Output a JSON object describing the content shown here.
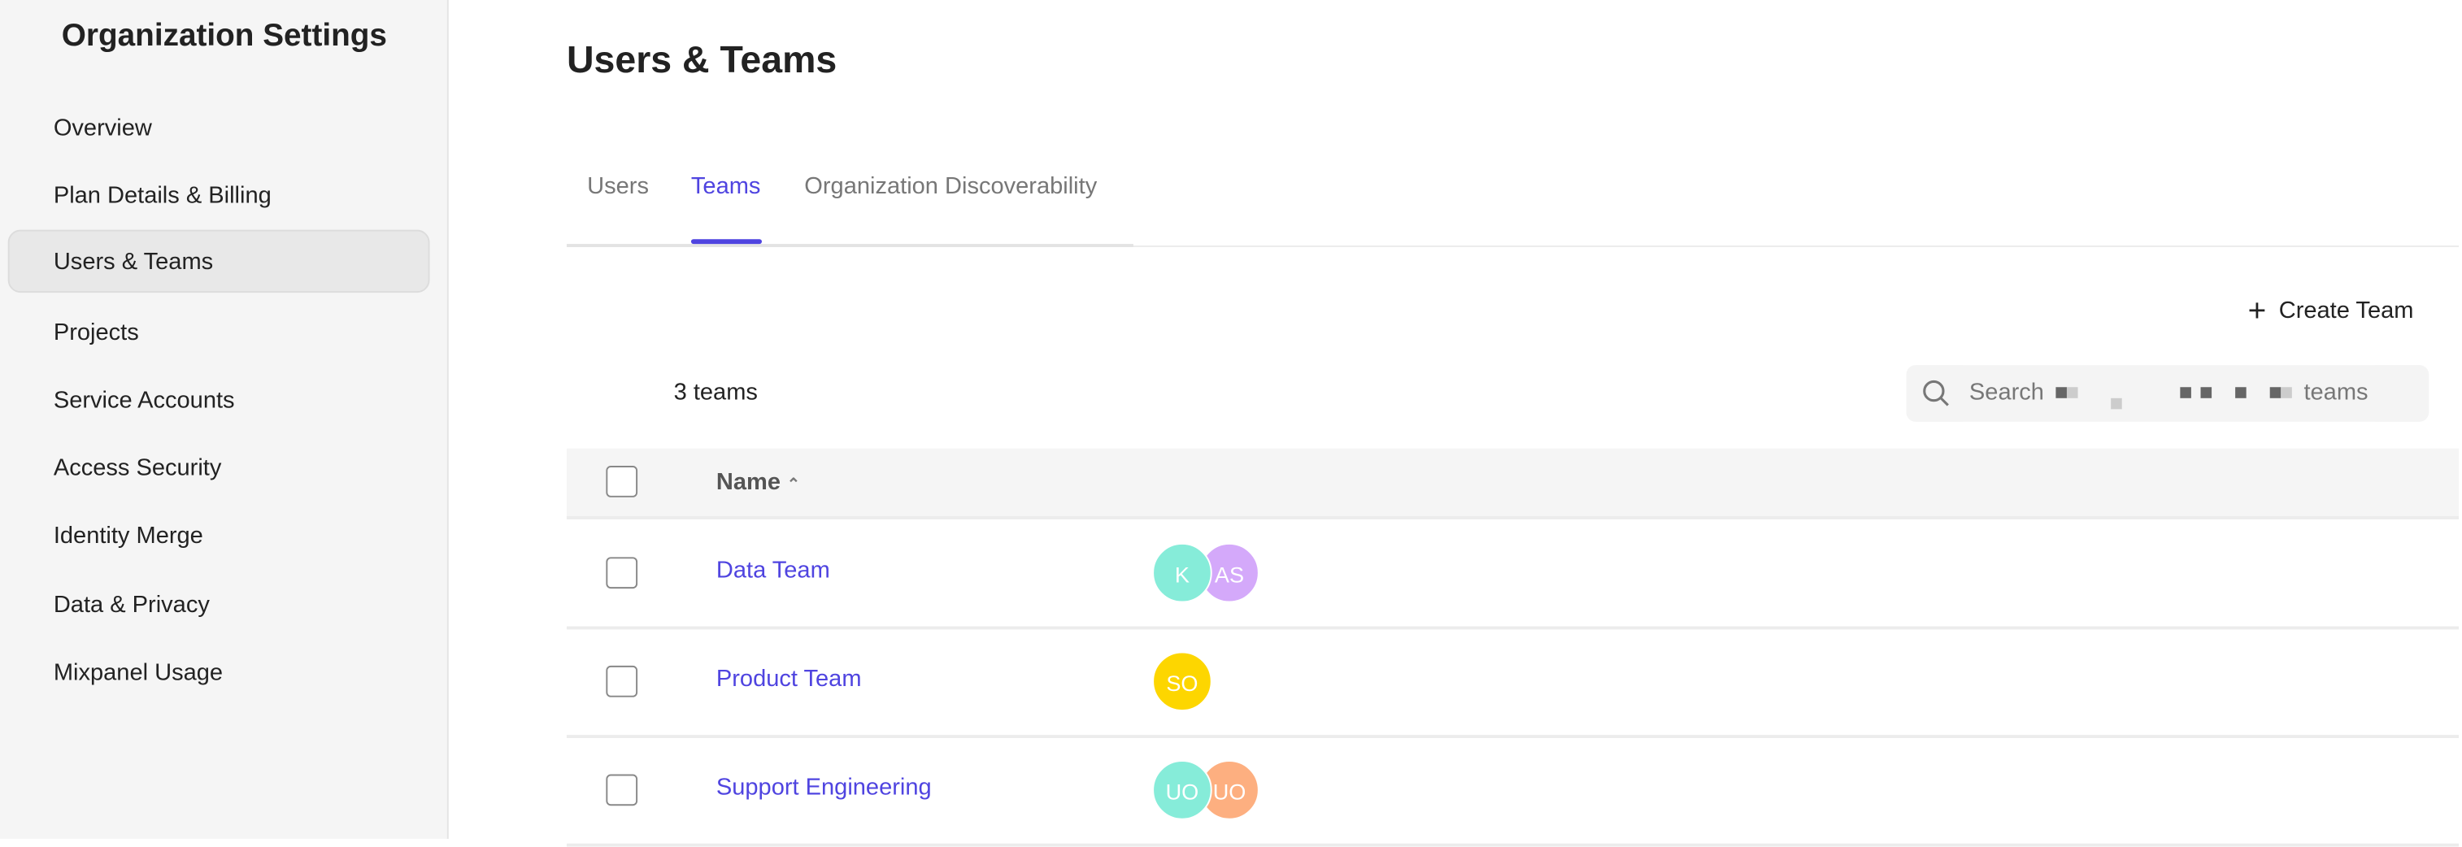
{
  "sidebar": {
    "title": "Organization Settings",
    "items": [
      {
        "label": "Overview"
      },
      {
        "label": "Plan Details & Billing"
      },
      {
        "label": "Users & Teams",
        "active": true
      },
      {
        "label": "Projects"
      },
      {
        "label": "Service Accounts"
      },
      {
        "label": "Access Security"
      },
      {
        "label": "Identity Merge"
      },
      {
        "label": "Data & Privacy"
      },
      {
        "label": "Mixpanel Usage"
      }
    ]
  },
  "main": {
    "title": "Users & Teams",
    "tabs": [
      {
        "label": "Users"
      },
      {
        "label": "Teams",
        "active": true
      },
      {
        "label": "Organization Discoverability"
      }
    ],
    "create_label": "Create Team",
    "count_label": "3 teams",
    "search": {
      "prefix": "Search",
      "suffix": "teams"
    },
    "table": {
      "header": {
        "name": "Name"
      },
      "rows": [
        {
          "name": "Data Team",
          "avatars": [
            {
              "initials": "K",
              "color": "#86ecd9"
            },
            {
              "initials": "AS",
              "color": "#d4a9fa"
            }
          ]
        },
        {
          "name": "Product Team",
          "avatars": [
            {
              "initials": "SO",
              "color": "#fdd600"
            }
          ]
        },
        {
          "name": "Support Engineering",
          "avatars": [
            {
              "initials": "UO",
              "color": "#86ecd9"
            },
            {
              "initials": "UO",
              "color": "#fdaf80"
            }
          ]
        }
      ]
    }
  },
  "colors": {
    "accent": "#4f44e0"
  }
}
